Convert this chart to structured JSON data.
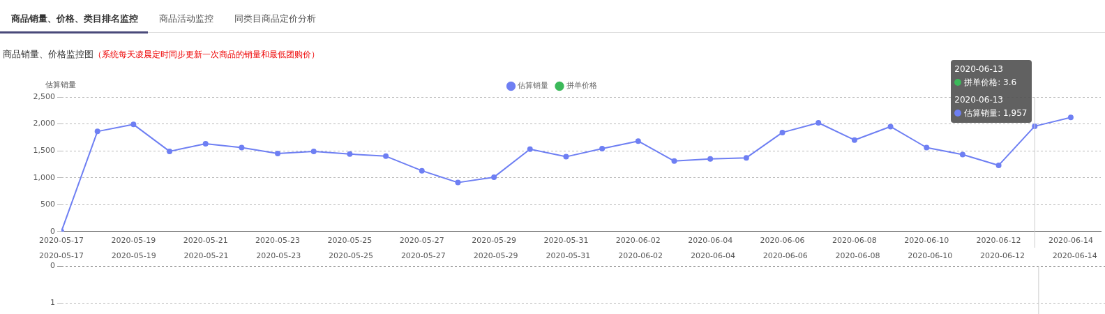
{
  "chart_data": [
    {
      "type": "line",
      "title": "商品销量、价格监控图",
      "subtitle": "（系统每天凌晨定时同步更新一次商品的销量和最低团购价）",
      "ylabel": "估算销量",
      "x": [
        "2020-05-17",
        "2020-05-18",
        "2020-05-19",
        "2020-05-20",
        "2020-05-21",
        "2020-05-22",
        "2020-05-23",
        "2020-05-24",
        "2020-05-25",
        "2020-05-26",
        "2020-05-27",
        "2020-05-28",
        "2020-05-29",
        "2020-05-30",
        "2020-05-31",
        "2020-06-01",
        "2020-06-02",
        "2020-06-03",
        "2020-06-04",
        "2020-06-05",
        "2020-06-06",
        "2020-06-07",
        "2020-06-08",
        "2020-06-09",
        "2020-06-10",
        "2020-06-11",
        "2020-06-12",
        "2020-06-13",
        "2020-06-14"
      ],
      "series": [
        {
          "name": "估算销量",
          "color": "#6e7ff3",
          "values": [
            0,
            1860,
            1990,
            1490,
            1630,
            1560,
            1450,
            1490,
            1440,
            1400,
            1130,
            910,
            1010,
            1530,
            1390,
            1540,
            1680,
            1310,
            1350,
            1370,
            1840,
            2020,
            1700,
            1950,
            1560,
            1430,
            1230,
            1957,
            2120
          ]
        },
        {
          "name": "拼单价格",
          "color": "#3cb95a",
          "values": [
            null,
            null,
            null,
            null,
            null,
            null,
            null,
            null,
            null,
            null,
            null,
            null,
            null,
            null,
            null,
            null,
            null,
            null,
            null,
            null,
            null,
            null,
            null,
            null,
            null,
            null,
            null,
            null,
            null
          ]
        }
      ],
      "xlim": [
        "2020-05-17",
        "2020-06-14T20:00"
      ],
      "xticks": [
        "2020-05-17",
        "2020-05-19",
        "2020-05-21",
        "2020-05-23",
        "2020-05-25",
        "2020-05-27",
        "2020-05-29",
        "2020-05-31",
        "2020-06-02",
        "2020-06-04",
        "2020-06-06",
        "2020-06-08",
        "2020-06-10",
        "2020-06-12",
        "2020-06-14"
      ],
      "ylim": [
        0,
        2500
      ],
      "yticks": [
        0,
        500,
        {
          "value": 1000,
          "label": "1,000"
        },
        {
          "value": 1500,
          "label": "1,500"
        },
        {
          "value": 2000,
          "label": "2,000"
        },
        {
          "value": 2500,
          "label": "2,500"
        }
      ],
      "grid": "y",
      "legend": "top",
      "marker": "circle",
      "line_style": "solid",
      "ref_lines": [
        {
          "axis": "x",
          "value": "2020-06-13",
          "color": "#cccccc"
        }
      ],
      "annotations": [
        "商品销量、价格、类目排名监控",
        "商品活动监控",
        "同类目商品定价分析",
        {
          "text": "2020-06-13\n拼单价格: 3.6\n2020-06-13\n估算销量: 1,957",
          "x": "2020-06-13",
          "y": 1957
        }
      ]
    },
    {
      "type": "line",
      "xlim": [
        "2020-05-17",
        "2020-06-14T20:00"
      ],
      "xticks": [
        "2020-05-17",
        "2020-05-19",
        "2020-05-21",
        "2020-05-23",
        "2020-05-25",
        "2020-05-27",
        "2020-05-29",
        "2020-05-31",
        "2020-06-02",
        "2020-06-04",
        "2020-06-06",
        "2020-06-08",
        "2020-06-10",
        "2020-06-12",
        "2020-06-14"
      ],
      "ylim": [
        1,
        0
      ],
      "yticks": [
        0,
        1
      ],
      "grid": "y",
      "ref_lines": [
        {
          "axis": "x",
          "value": "2020-06-13",
          "color": "#cccccc"
        }
      ]
    }
  ]
}
